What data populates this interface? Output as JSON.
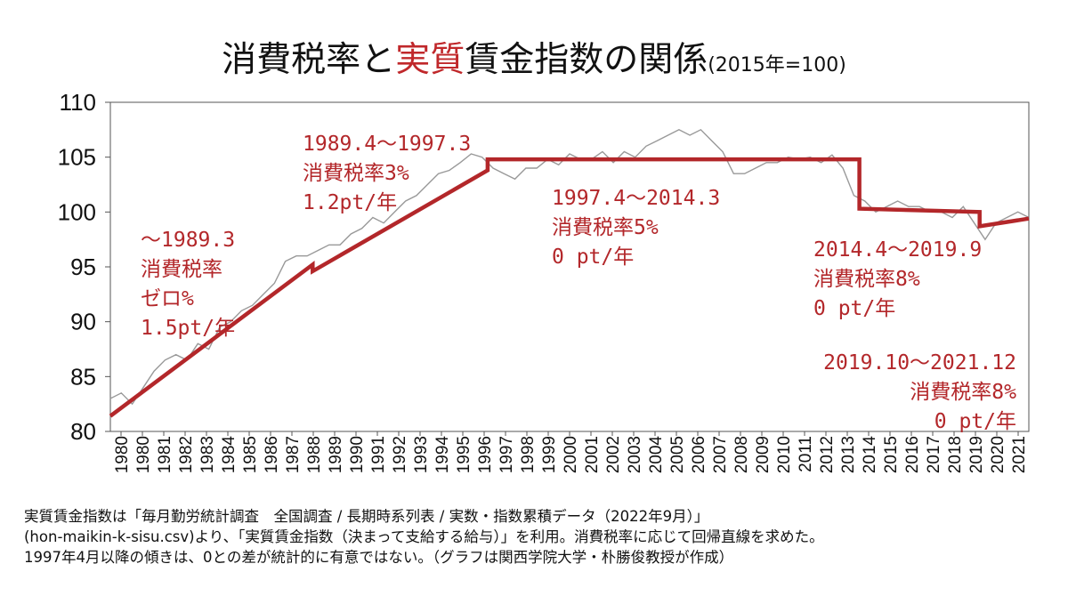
{
  "title": {
    "main_black": "消費税率と",
    "main_red": "実質",
    "main_black2": "賃金指数の関係",
    "suffix": "(2015年=100)"
  },
  "colors": {
    "regression": "#b3272a",
    "raw": "#999999",
    "axis": "#333333"
  },
  "chart_data": {
    "type": "line",
    "ylim": [
      80,
      110
    ],
    "yticks": [
      80,
      85,
      90,
      95,
      100,
      105,
      110
    ],
    "xlim": [
      1980.0,
      2022.0
    ],
    "xtick_labels": [
      "1980",
      "1980",
      "1981",
      "1982",
      "1983",
      "1984",
      "1985",
      "1986",
      "1987",
      "1988",
      "1989",
      "1990",
      "1991",
      "1992",
      "1993",
      "1994",
      "1995",
      "1996",
      "1997",
      "1998",
      "1999",
      "2000",
      "2001",
      "2002",
      "2003",
      "2004",
      "2005",
      "2006",
      "2007",
      "2008",
      "2009",
      "2010",
      "2011",
      "2012",
      "2013",
      "2014",
      "2015",
      "2016",
      "2017",
      "2018",
      "2019",
      "2020",
      "2021"
    ],
    "grid": false,
    "series": [
      {
        "style": "regression",
        "x": [
          1980.0,
          1989.25,
          1989.25,
          1997.25,
          1997.25,
          2014.25,
          2014.25,
          2019.75,
          2019.75,
          2022.0
        ],
        "y": [
          81.4,
          95.2,
          94.6,
          103.8,
          104.8,
          104.8,
          100.3,
          100.0,
          98.7,
          99.4
        ]
      },
      {
        "style": "raw",
        "x": [
          1980.0,
          1980.5,
          1981.0,
          1981.5,
          1982.0,
          1982.5,
          1983.0,
          1983.5,
          1984.0,
          1984.5,
          1985.0,
          1985.5,
          1986.0,
          1986.5,
          1987.0,
          1987.5,
          1988.0,
          1988.5,
          1989.0,
          1989.5,
          1990.0,
          1990.5,
          1991.0,
          1991.5,
          1992.0,
          1992.5,
          1993.0,
          1993.5,
          1994.0,
          1994.5,
          1995.0,
          1995.5,
          1996.0,
          1996.5,
          1997.0,
          1997.5,
          1998.0,
          1998.5,
          1999.0,
          1999.5,
          2000.0,
          2000.5,
          2001.0,
          2001.5,
          2002.0,
          2002.5,
          2003.0,
          2003.5,
          2004.0,
          2004.5,
          2005.0,
          2005.5,
          2006.0,
          2006.5,
          2007.0,
          2007.5,
          2008.0,
          2008.5,
          2009.0,
          2009.5,
          2010.0,
          2010.5,
          2011.0,
          2011.5,
          2012.0,
          2012.5,
          2013.0,
          2013.5,
          2014.0,
          2014.5,
          2015.0,
          2015.5,
          2016.0,
          2016.5,
          2017.0,
          2017.5,
          2018.0,
          2018.5,
          2019.0,
          2019.5,
          2020.0,
          2020.5,
          2021.0,
          2021.5,
          2022.0
        ],
        "y": [
          83.0,
          83.5,
          82.5,
          84.0,
          85.5,
          86.5,
          87.0,
          86.5,
          88.0,
          87.5,
          89.5,
          90.0,
          91.0,
          91.5,
          92.5,
          93.5,
          95.5,
          96.0,
          96.0,
          96.5,
          97.0,
          97.0,
          98.0,
          98.5,
          99.5,
          99.0,
          100.0,
          101.0,
          101.5,
          102.5,
          103.5,
          103.8,
          104.5,
          105.3,
          105.0,
          104.0,
          103.5,
          103.0,
          104.0,
          104.0,
          104.8,
          104.3,
          105.3,
          104.8,
          104.8,
          105.5,
          104.5,
          105.5,
          105.0,
          106.0,
          106.5,
          107.0,
          107.5,
          107.0,
          107.5,
          106.5,
          105.5,
          103.5,
          103.5,
          104.0,
          104.5,
          104.5,
          105.0,
          104.8,
          105.0,
          104.5,
          105.2,
          104.0,
          101.5,
          101.0,
          100.0,
          100.5,
          101.0,
          100.5,
          100.5,
          100.0,
          100.0,
          99.5,
          100.5,
          99.0,
          97.5,
          99.0,
          99.5,
          100.0,
          99.5
        ]
      }
    ],
    "annotations": [
      {
        "lines": [
          "～1989.3",
          "消費税率",
          "ゼロ%",
          "1.5pt/年"
        ]
      },
      {
        "lines": [
          "1989.4～1997.3",
          "消費税率3%",
          "1.2pt/年"
        ]
      },
      {
        "lines": [
          "1997.4～2014.3",
          "消費税率5%",
          "0 pt/年"
        ]
      },
      {
        "lines": [
          "2014.4～2019.9",
          "消費税率8%",
          "0 pt/年"
        ]
      },
      {
        "lines": [
          "2019.10～2021.12",
          "消費税率8%",
          "0 pt/年"
        ]
      }
    ]
  },
  "footnote": {
    "lines": [
      "実質賃金指数は「毎月勤労統計調査　全国調査 / 長期時系列表 / 実数・指数累積データ（2022年9月）」",
      "(hon-maikin-k-sisu.csv)より、「実質賃金指数（決まって支給する給与）」を利用。消費税率に応じて回帰直線を求めた。",
      "1997年4月以降の傾きは、0との差が統計的に有意ではない。（グラフは関西学院大学・朴勝俊教授が作成）"
    ]
  }
}
